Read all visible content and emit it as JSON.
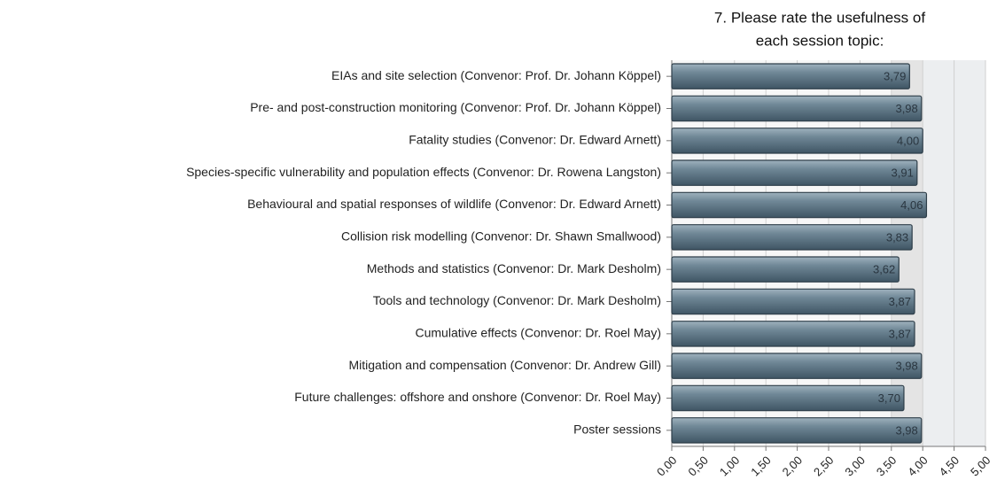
{
  "chart_data": {
    "type": "hbar",
    "title": [
      "7. Please rate the usefulness of",
      "each session topic:"
    ],
    "categories": [
      "EIAs and site selection (Convenor: Prof. Dr. Johann Köppel)",
      "Pre- and post-construction monitoring (Convenor: Prof. Dr. Johann Köppel)",
      "Fatality studies (Convenor: Dr. Edward Arnett)",
      "Species-specific vulnerability and population effects (Convenor: Dr. Rowena Langston)",
      "Behavioural and spatial responses of wildlife (Convenor: Dr. Edward Arnett)",
      "Collision risk modelling (Convenor: Dr. Shawn Smallwood)",
      "Methods and statistics (Convenor: Dr. Mark Desholm)",
      "Tools and technology (Convenor: Dr. Mark Desholm)",
      "Cumulative effects (Convenor: Dr. Roel May)",
      "Mitigation and compensation (Convenor: Dr. Andrew Gill)",
      "Future challenges: offshore and onshore (Convenor: Dr. Roel May)",
      "Poster sessions"
    ],
    "values": [
      3.79,
      3.98,
      4.0,
      3.91,
      4.06,
      3.83,
      3.62,
      3.87,
      3.87,
      3.98,
      3.7,
      3.98
    ],
    "value_labels": [
      "3,79",
      "3,98",
      "4,00",
      "3,91",
      "4,06",
      "3,83",
      "3,62",
      "3,87",
      "3,87",
      "3,98",
      "3,70",
      "3,98"
    ],
    "color": "#5d7485",
    "xlim": [
      0,
      5
    ],
    "xticks": [
      {
        "value": 0,
        "label": "0,00"
      },
      {
        "value": 0.5,
        "label": "0,50"
      },
      {
        "value": 1,
        "label": "1,00"
      },
      {
        "value": 1.5,
        "label": "1,50"
      },
      {
        "value": 2,
        "label": "2,00"
      },
      {
        "value": 2.5,
        "label": "2,50"
      },
      {
        "value": 3,
        "label": "3,00"
      },
      {
        "value": 3.5,
        "label": "3,50"
      },
      {
        "value": 4,
        "label": "4,00"
      },
      {
        "value": 4.5,
        "label": "4,50"
      },
      {
        "value": 5,
        "label": "5,00"
      }
    ],
    "grid": true
  }
}
